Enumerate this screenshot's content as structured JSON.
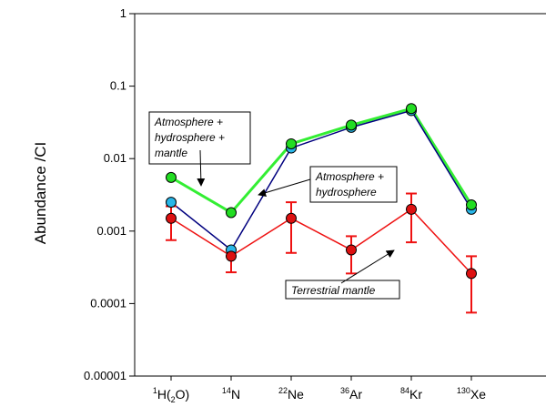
{
  "chart_data": {
    "type": "line",
    "y_scale": "log",
    "ylim": [
      1e-05,
      1
    ],
    "ylabel": "Abundance /CI",
    "yticks": [
      {
        "value": 1,
        "label": "1"
      },
      {
        "value": 0.1,
        "label": "0.1"
      },
      {
        "value": 0.01,
        "label": "0.01"
      },
      {
        "value": 0.001,
        "label": "0.001"
      },
      {
        "value": 0.0001,
        "label": "0.0001"
      },
      {
        "value": 1e-05,
        "label": "0.00001"
      }
    ],
    "categories": [
      {
        "sup": "1",
        "base": "H(",
        "sub": "2",
        "tail": "O)"
      },
      {
        "sup": "14",
        "base": "N",
        "sub": "",
        "tail": ""
      },
      {
        "sup": "22",
        "base": "Ne",
        "sub": "",
        "tail": ""
      },
      {
        "sup": "36",
        "base": "Ar",
        "sub": "",
        "tail": ""
      },
      {
        "sup": "84",
        "base": "Kr",
        "sub": "",
        "tail": ""
      },
      {
        "sup": "130",
        "base": "Xe",
        "sub": "",
        "tail": ""
      }
    ],
    "grid": false,
    "series": [
      {
        "key": "atm_hyd",
        "line_color": "#00007f",
        "marker_color": "#29b6e8",
        "values": [
          0.0025,
          0.00055,
          0.014,
          0.027,
          0.046,
          0.002
        ]
      },
      {
        "key": "atm_hyd_mantle",
        "line_color": "#33ee33",
        "marker_color": "#22dd22",
        "values": [
          0.0055,
          0.0018,
          0.016,
          0.029,
          0.049,
          0.0023
        ]
      },
      {
        "key": "mantle",
        "line_color": "#ee1111",
        "marker_color": "#dd1111",
        "values": [
          0.0015,
          0.00045,
          0.0015,
          0.00055,
          0.002,
          0.00026
        ],
        "error_low": [
          0.00075,
          0.00027,
          0.0005,
          0.00026,
          0.0007,
          7.5e-05
        ],
        "error_high": [
          0.0022,
          0.00045,
          0.0025,
          0.00085,
          0.0033,
          0.00045
        ]
      }
    ],
    "annotations": [
      {
        "key": "a1",
        "lines": [
          "Atmosphere +",
          "hydrosphere +",
          "mantle"
        ]
      },
      {
        "key": "a2",
        "lines": [
          "Atmosphere +",
          "hydrosphere"
        ]
      },
      {
        "key": "a3",
        "lines": [
          "Terrestrial mantle"
        ]
      }
    ]
  }
}
